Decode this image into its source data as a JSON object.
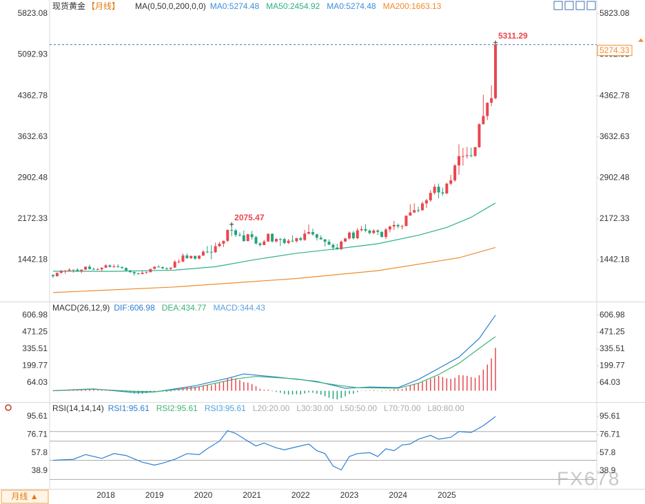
{
  "ui": {
    "period_button": "月线 ▲",
    "watermark": "FX678"
  },
  "chart_data": [
    {
      "type": "candlestick",
      "title": "现货黄金",
      "period": "【月线】",
      "indicator": "MA(0,50,0,200,0,0)",
      "categories": [
        null,
        null,
        null,
        null,
        null,
        null,
        null,
        null,
        null,
        null,
        null,
        null,
        null,
        "2018",
        null,
        null,
        null,
        null,
        null,
        null,
        null,
        null,
        null,
        null,
        null,
        "2019",
        null,
        null,
        null,
        null,
        null,
        null,
        null,
        null,
        null,
        null,
        null,
        "2020",
        null,
        null,
        null,
        null,
        null,
        null,
        null,
        null,
        null,
        null,
        null,
        "2021",
        null,
        null,
        null,
        null,
        null,
        null,
        null,
        null,
        null,
        null,
        null,
        "2022",
        null,
        null,
        null,
        null,
        null,
        null,
        null,
        null,
        null,
        null,
        null,
        "2023",
        null,
        null,
        null,
        null,
        null,
        null,
        null,
        null,
        null,
        null,
        null,
        "2024",
        null,
        null,
        null,
        null,
        null,
        null,
        null,
        null,
        null,
        null,
        null,
        "2025",
        null,
        null,
        null,
        null,
        null,
        null,
        null,
        null,
        null,
        null,
        null,
        null
      ],
      "ohlc": [
        [
          1173,
          1183,
          1123,
          1151
        ],
        [
          1151,
          1220,
          1146,
          1210
        ],
        [
          1210,
          1264,
          1200,
          1248
        ],
        [
          1248,
          1262,
          1195,
          1249
        ],
        [
          1249,
          1295,
          1245,
          1268
        ],
        [
          1268,
          1270,
          1214,
          1268
        ],
        [
          1268,
          1296,
          1236,
          1241
        ],
        [
          1241,
          1270,
          1205,
          1269
        ],
        [
          1269,
          1326,
          1262,
          1321
        ],
        [
          1321,
          1357,
          1272,
          1280
        ],
        [
          1280,
          1306,
          1260,
          1270
        ],
        [
          1270,
          1300,
          1264,
          1275
        ],
        [
          1275,
          1307,
          1236,
          1303
        ],
        [
          1303,
          1366,
          1302,
          1345
        ],
        [
          1345,
          1361,
          1307,
          1318
        ],
        [
          1318,
          1365,
          1303,
          1325
        ],
        [
          1325,
          1365,
          1301,
          1315
        ],
        [
          1315,
          1326,
          1282,
          1298
        ],
        [
          1298,
          1309,
          1246,
          1253
        ],
        [
          1253,
          1266,
          1211,
          1224
        ],
        [
          1224,
          1237,
          1160,
          1201
        ],
        [
          1201,
          1214,
          1180,
          1192
        ],
        [
          1192,
          1243,
          1182,
          1214
        ],
        [
          1214,
          1237,
          1196,
          1222
        ],
        [
          1222,
          1284,
          1221,
          1282
        ],
        [
          1282,
          1326,
          1276,
          1321
        ],
        [
          1321,
          1347,
          1311,
          1313
        ],
        [
          1313,
          1324,
          1280,
          1292
        ],
        [
          1292,
          1310,
          1266,
          1284
        ],
        [
          1284,
          1306,
          1266,
          1305
        ],
        [
          1305,
          1439,
          1301,
          1409
        ],
        [
          1409,
          1452,
          1381,
          1413
        ],
        [
          1413,
          1555,
          1400,
          1520
        ],
        [
          1520,
          1557,
          1459,
          1472
        ],
        [
          1472,
          1518,
          1458,
          1513
        ],
        [
          1513,
          1516,
          1445,
          1464
        ],
        [
          1464,
          1524,
          1454,
          1517
        ],
        [
          1517,
          1611,
          1516,
          1589
        ],
        [
          1589,
          1689,
          1563,
          1585
        ],
        [
          1585,
          1704,
          1451,
          1577
        ],
        [
          1577,
          1748,
          1567,
          1686
        ],
        [
          1686,
          1765,
          1670,
          1730
        ],
        [
          1730,
          1785,
          1671,
          1781
        ],
        [
          1781,
          1984,
          1757,
          1975
        ],
        [
          1975,
          2075.47,
          1863,
          1968
        ],
        [
          1968,
          1992,
          1849,
          1886
        ],
        [
          1886,
          1933,
          1860,
          1879
        ],
        [
          1879,
          1966,
          1764,
          1776
        ],
        [
          1776,
          1906,
          1775,
          1898
        ],
        [
          1898,
          1959,
          1802,
          1847
        ],
        [
          1847,
          1872,
          1717,
          1734
        ],
        [
          1734,
          1755,
          1677,
          1707
        ],
        [
          1707,
          1798,
          1704,
          1769
        ],
        [
          1769,
          1913,
          1766,
          1906
        ],
        [
          1906,
          1916,
          1750,
          1770
        ],
        [
          1770,
          1832,
          1751,
          1814
        ],
        [
          1814,
          1832,
          1688,
          1813
        ],
        [
          1813,
          1834,
          1722,
          1743
        ],
        [
          1743,
          1814,
          1722,
          1783
        ],
        [
          1783,
          1877,
          1758,
          1774
        ],
        [
          1774,
          1831,
          1753,
          1829
        ],
        [
          1829,
          1853,
          1780,
          1797
        ],
        [
          1797,
          1974,
          1781,
          1909
        ],
        [
          1909,
          2070,
          1895,
          1937
        ],
        [
          1937,
          1998,
          1872,
          1896
        ],
        [
          1896,
          1910,
          1787,
          1837
        ],
        [
          1837,
          1879,
          1805,
          1807
        ],
        [
          1807,
          1814,
          1681,
          1765
        ],
        [
          1765,
          1808,
          1709,
          1711
        ],
        [
          1711,
          1735,
          1615,
          1661
        ],
        [
          1661,
          1730,
          1617,
          1633
        ],
        [
          1633,
          1786,
          1616,
          1768
        ],
        [
          1768,
          1833,
          1765,
          1824
        ],
        [
          1824,
          1949,
          1804,
          1928
        ],
        [
          1928,
          1959,
          1805,
          1827
        ],
        [
          1827,
          2009,
          1810,
          1969
        ],
        [
          1969,
          2048,
          1950,
          1990
        ],
        [
          1990,
          2079,
          1932,
          1963
        ],
        [
          1963,
          1984,
          1893,
          1919
        ],
        [
          1919,
          1987,
          1903,
          1965
        ],
        [
          1965,
          1987,
          1885,
          1940
        ],
        [
          1940,
          1953,
          1846,
          1849
        ],
        [
          1849,
          2009,
          1810,
          1983
        ],
        [
          1983,
          2052,
          1931,
          2036
        ],
        [
          2036,
          2135,
          1973,
          2063
        ],
        [
          2063,
          2088,
          2002,
          2039
        ],
        [
          2039,
          2065,
          1984,
          2044
        ],
        [
          2044,
          2222,
          2039,
          2230
        ],
        [
          2230,
          2431,
          2228,
          2286
        ],
        [
          2286,
          2450,
          2277,
          2327
        ],
        [
          2327,
          2387,
          2286,
          2326
        ],
        [
          2326,
          2483,
          2318,
          2447
        ],
        [
          2447,
          2531,
          2364,
          2503
        ],
        [
          2503,
          2685,
          2472,
          2634
        ],
        [
          2634,
          2790,
          2604,
          2744
        ],
        [
          2744,
          2801,
          2536,
          2643
        ],
        [
          2643,
          2726,
          2583,
          2625
        ],
        [
          2625,
          2817,
          2614,
          2798
        ],
        [
          2798,
          2956,
          2772,
          2858
        ],
        [
          2858,
          3148,
          2832,
          3123
        ],
        [
          3123,
          3500,
          2957,
          3289
        ],
        [
          3289,
          3435,
          3121,
          3289
        ],
        [
          3289,
          3452,
          3247,
          3303
        ],
        [
          3303,
          3439,
          3268,
          3290
        ],
        [
          3290,
          3453,
          3281,
          3448
        ],
        [
          3448,
          3871,
          3436,
          3858
        ],
        [
          3858,
          4381,
          3850,
          4003
        ],
        [
          4003,
          4245,
          3930,
          4239
        ],
        [
          4239,
          4550,
          4175,
          4320
        ],
        [
          4320,
          5311.29,
          4300,
          5274.33
        ]
      ],
      "up_color": "#e8474f",
      "down_color": "#26a17b",
      "series": [
        {
          "name": "MA0:5274.48",
          "color": "#3b8fd9"
        },
        {
          "name": "MA50:2454.92",
          "color": "#2bb08a",
          "x": [
            0,
            15,
            30,
            40,
            50,
            60,
            70,
            80,
            90,
            97,
            103,
            109
          ],
          "values": [
            1240,
            1238,
            1260,
            1320,
            1450,
            1560,
            1640,
            1730,
            1880,
            2020,
            2200,
            2454.92
          ]
        },
        {
          "name": "MA0:5274.48",
          "color": "#3b8fd9"
        },
        {
          "name": "MA200:1663.13",
          "color": "#f08a2c",
          "x": [
            0,
            30,
            60,
            80,
            100,
            109
          ],
          "values": [
            860,
            960,
            1110,
            1250,
            1480,
            1663.13
          ]
        }
      ],
      "annotations": [
        2075.47,
        5311.29
      ],
      "last_price": 5274.33,
      "last_price_color": "#f08a2c",
      "ylim": [
        700,
        5945
      ],
      "yticks": [
        1442.18,
        2172.33,
        2902.48,
        3632.63,
        4362.78,
        5092.93,
        5823.08
      ]
    },
    {
      "type": "macd",
      "title": "MACD(26,12,9)",
      "series": [
        {
          "name": "DIF:606.98",
          "color": "#2a7fd4",
          "x": [
            0,
            10,
            20,
            25,
            35,
            43,
            47,
            55,
            65,
            72,
            78,
            85,
            90,
            95,
            100,
            105,
            109
          ],
          "values": [
            0,
            15,
            -15,
            -10,
            40,
            100,
            135,
            110,
            75,
            20,
            30,
            25,
            90,
            180,
            270,
            420,
            606.98
          ]
        },
        {
          "name": "DEA:434.77",
          "color": "#3cb371",
          "x": [
            0,
            10,
            20,
            25,
            35,
            45,
            50,
            60,
            70,
            75,
            85,
            90,
            95,
            100,
            105,
            109
          ],
          "values": [
            0,
            12,
            -5,
            -8,
            25,
            95,
            115,
            95,
            45,
            25,
            20,
            60,
            130,
            220,
            340,
            434.77
          ]
        },
        {
          "name": "MACD:344.43",
          "color": "#5aa0e0",
          "up_color": "#e8474f",
          "down_color": "#26a17b",
          "values": [
            2,
            4,
            6,
            8,
            10,
            12,
            10,
            8,
            10,
            12,
            8,
            6,
            8,
            10,
            6,
            4,
            2,
            -4,
            -10,
            -16,
            -22,
            -26,
            -24,
            -20,
            -14,
            -8,
            -4,
            -6,
            -8,
            -6,
            4,
            12,
            26,
            30,
            34,
            32,
            36,
            42,
            46,
            44,
            56,
            64,
            72,
            96,
            104,
            96,
            86,
            70,
            66,
            54,
            36,
            16,
            8,
            8,
            -4,
            -10,
            -16,
            -26,
            -30,
            -30,
            -28,
            -30,
            -22,
            -14,
            -16,
            -24,
            -32,
            -44,
            -56,
            -66,
            -70,
            -58,
            -44,
            -26,
            -24,
            -10,
            0,
            4,
            4,
            6,
            2,
            -4,
            0,
            6,
            12,
            12,
            14,
            26,
            42,
            54,
            60,
            70,
            82,
            96,
            110,
            120,
            110,
            100,
            96,
            104,
            126,
            124,
            120,
            110,
            104,
            124,
            170,
            210,
            260,
            344.43
          ]
        }
      ],
      "ylim": [
        -80,
        705
      ],
      "yticks": [
        64.03,
        199.77,
        335.51,
        471.25,
        606.98
      ]
    },
    {
      "type": "line",
      "title": "RSI(14,14,14)",
      "series": [
        {
          "name": "RSI1:95.61",
          "color": "#2a7fd4",
          "x": [
            0,
            5,
            8,
            12,
            15,
            18,
            22,
            25,
            27,
            30,
            33,
            36,
            38,
            41,
            43,
            45,
            48,
            50,
            52,
            55,
            57,
            60,
            63,
            65,
            67,
            69,
            71,
            73,
            75,
            78,
            80,
            82,
            84,
            86,
            88,
            90,
            93,
            95,
            98,
            100,
            103,
            106,
            109
          ],
          "values": [
            50,
            51,
            56,
            52,
            57,
            55,
            48,
            45,
            47,
            51,
            57,
            56,
            62,
            70,
            81,
            78,
            70,
            65,
            68,
            63,
            61,
            64,
            67,
            60,
            57,
            44,
            40,
            54,
            57,
            58,
            54,
            62,
            60,
            66,
            67,
            72,
            76,
            72,
            74,
            80,
            79,
            86,
            95.61
          ]
        },
        {
          "name": "RSI2:95.61",
          "color": "#3cb371"
        },
        {
          "name": "RSI3:95.61",
          "color": "#4aa3e0"
        }
      ],
      "levels": [
        {
          "name": "L20:20.00",
          "value": 20
        },
        {
          "name": "L30:30.00",
          "value": 30
        },
        {
          "name": "L50:50.00",
          "value": 50
        },
        {
          "name": "L70:70.00",
          "value": 70
        },
        {
          "name": "L80:80.00",
          "value": 80
        }
      ],
      "level_color": "#aaaaaa",
      "ylim": [
        23.1,
        106.4
      ],
      "yticks": [
        38.9,
        57.8,
        76.71,
        95.61
      ]
    }
  ]
}
